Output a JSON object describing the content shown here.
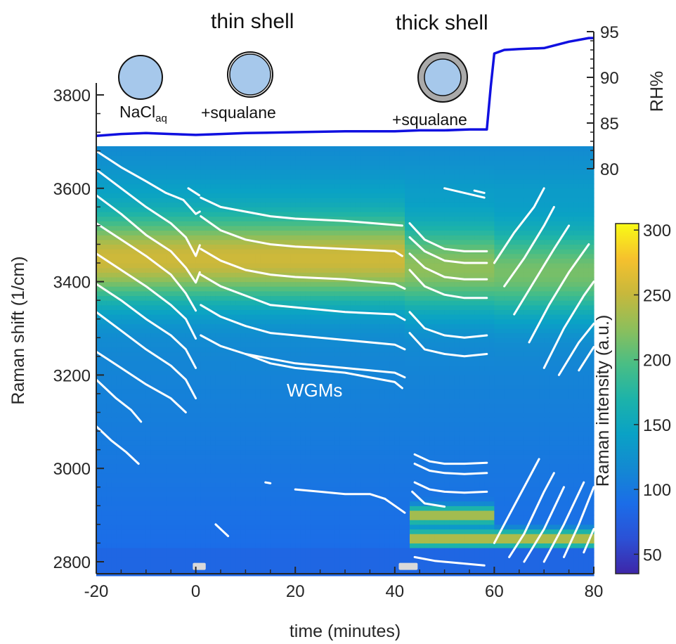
{
  "chart_data": [
    {
      "type": "heatmap",
      "xlabel": "time (minutes)",
      "ylabel": "Raman shift (1/cm)",
      "xlim": [
        -20,
        80
      ],
      "ylim": [
        2770,
        3690
      ],
      "x_ticks": [
        "-20",
        "0",
        "20",
        "40",
        "60",
        "80"
      ],
      "y_ticks": [
        "2800",
        "3000",
        "3200",
        "3400",
        "3600",
        "3800"
      ],
      "colorbar": {
        "label": "Raman intensity (a.u.)",
        "range": [
          35,
          305
        ],
        "ticks": [
          "50",
          "100",
          "150",
          "200",
          "250",
          "300"
        ],
        "colormap": "parula"
      },
      "annotations": {
        "wgm": "WGMs"
      },
      "intensity_bands": [
        {
          "t_start": -20,
          "t_end": 42,
          "shift": 3450,
          "peak": 255
        },
        {
          "t_start": 42,
          "t_end": 60,
          "shift": 3430,
          "peak": 225
        },
        {
          "t_start": 60,
          "t_end": 80,
          "shift": 3420,
          "peak": 215
        },
        {
          "t_start": 43,
          "t_end": 60,
          "shift": 2900,
          "peak": 245
        },
        {
          "t_start": 43,
          "t_end": 80,
          "shift": 2850,
          "peak": 250
        }
      ],
      "background_intensity": {
        "high_shift": 140,
        "low_shift": 85
      },
      "sample_marks": [
        {
          "t_start": -0.6,
          "t_end": 2.0,
          "shift": 2790
        },
        {
          "t_start": 40.8,
          "t_end": 44.6,
          "shift": 2790
        }
      ],
      "wgm_series": [
        {
          "x": [
            -20,
            -15,
            -10,
            -6,
            -2.5,
            0,
            0.8
          ],
          "y": [
            3680,
            3645,
            3615,
            3590,
            3575,
            3545,
            3550
          ]
        },
        {
          "x": [
            -20,
            -15,
            -10,
            -5,
            -2,
            0,
            0.8
          ],
          "y": [
            3640,
            3600,
            3560,
            3525,
            3495,
            3455,
            3478
          ]
        },
        {
          "x": [
            -20,
            -15,
            -10,
            -5,
            -2,
            0,
            0.8
          ],
          "y": [
            3585,
            3545,
            3500,
            3465,
            3430,
            3398,
            3420
          ]
        },
        {
          "x": [
            -20,
            -15,
            -10,
            -5,
            -2,
            0
          ],
          "y": [
            3525,
            3490,
            3455,
            3415,
            3375,
            3338
          ]
        },
        {
          "x": [
            -20,
            -15,
            -10,
            -5,
            -2,
            0
          ],
          "y": [
            3460,
            3425,
            3390,
            3350,
            3320,
            3278
          ]
        },
        {
          "x": [
            -20,
            -15,
            -10,
            -5,
            -2,
            0
          ],
          "y": [
            3395,
            3360,
            3320,
            3285,
            3255,
            3215
          ]
        },
        {
          "x": [
            -20,
            -15,
            -10,
            -5,
            -2,
            0
          ],
          "y": [
            3335,
            3295,
            3255,
            3220,
            3190,
            3150
          ]
        },
        {
          "x": [
            -20,
            -15,
            -10,
            -5,
            -2
          ],
          "y": [
            3250,
            3215,
            3180,
            3150,
            3120
          ]
        },
        {
          "x": [
            -20,
            -16,
            -13,
            -11
          ],
          "y": [
            3190,
            3150,
            3125,
            3100
          ]
        },
        {
          "x": [
            -20,
            -17,
            -14,
            -11.5
          ],
          "y": [
            3090,
            3060,
            3035,
            3010
          ]
        },
        {
          "x": [
            -1.5,
            0.7
          ],
          "y": [
            3600,
            3585
          ]
        },
        {
          "x": [
            1,
            5,
            10,
            15,
            20,
            30,
            41.5
          ],
          "y": [
            3580,
            3560,
            3550,
            3540,
            3535,
            3530,
            3520
          ]
        },
        {
          "x": [
            1,
            5,
            10,
            15,
            20,
            30,
            40,
            41.5
          ],
          "y": [
            3540,
            3510,
            3490,
            3480,
            3475,
            3470,
            3465,
            3455
          ]
        },
        {
          "x": [
            1,
            5,
            10,
            15,
            20,
            30,
            40,
            42
          ],
          "y": [
            3470,
            3445,
            3425,
            3415,
            3410,
            3405,
            3395,
            3385
          ]
        },
        {
          "x": [
            1,
            5,
            10,
            15,
            20,
            30,
            40,
            42
          ],
          "y": [
            3415,
            3390,
            3370,
            3350,
            3345,
            3335,
            3330,
            3318
          ]
        },
        {
          "x": [
            1,
            5,
            10,
            15,
            20,
            30,
            40,
            42
          ],
          "y": [
            3350,
            3325,
            3305,
            3290,
            3285,
            3275,
            3265,
            3255
          ]
        },
        {
          "x": [
            1,
            5,
            10,
            15,
            20,
            30,
            40,
            42
          ],
          "y": [
            3285,
            3262,
            3245,
            3235,
            3225,
            3215,
            3205,
            3195
          ]
        },
        {
          "x": [
            10,
            15,
            20,
            30,
            40,
            41.5
          ],
          "y": [
            3245,
            3225,
            3215,
            3205,
            3185,
            3172
          ]
        },
        {
          "x": [
            20,
            25,
            30,
            35,
            38
          ],
          "y": [
            2955,
            2950,
            2945,
            2945,
            2935
          ]
        },
        {
          "x": [
            38,
            40,
            42
          ],
          "y": [
            2935,
            2920,
            2905
          ]
        },
        {
          "x": [
            4,
            5.5,
            6.5
          ],
          "y": [
            2880,
            2865,
            2855
          ]
        },
        {
          "x": [
            14,
            15
          ],
          "y": [
            2970,
            2968
          ]
        },
        {
          "x": [
            43,
            46,
            50,
            54,
            58.5
          ],
          "y": [
            3525,
            3490,
            3470,
            3465,
            3465
          ]
        },
        {
          "x": [
            43,
            46,
            50,
            54,
            58.5
          ],
          "y": [
            3495,
            3465,
            3445,
            3440,
            3440
          ]
        },
        {
          "x": [
            43,
            46,
            50,
            54,
            58.5
          ],
          "y": [
            3460,
            3430,
            3410,
            3405,
            3405
          ]
        },
        {
          "x": [
            43,
            46,
            50,
            54,
            58.5
          ],
          "y": [
            3425,
            3390,
            3372,
            3365,
            3365
          ]
        },
        {
          "x": [
            43,
            46,
            50,
            54,
            58.5
          ],
          "y": [
            3335,
            3300,
            3285,
            3280,
            3285
          ]
        },
        {
          "x": [
            43,
            46,
            50,
            54,
            58.5
          ],
          "y": [
            3290,
            3255,
            3245,
            3240,
            3245
          ]
        },
        {
          "x": [
            44,
            47,
            50,
            54,
            58.5
          ],
          "y": [
            3030,
            3015,
            3010,
            3010,
            3012
          ]
        },
        {
          "x": [
            44,
            47,
            50,
            54,
            58.5
          ],
          "y": [
            3010,
            2995,
            2990,
            2988,
            2990
          ]
        },
        {
          "x": [
            44,
            47,
            50,
            54,
            58.5
          ],
          "y": [
            2970,
            2955,
            2950,
            2948,
            2950
          ]
        },
        {
          "x": [
            43.5,
            46,
            50
          ],
          "y": [
            2950,
            2925,
            2918
          ]
        },
        {
          "x": [
            44,
            48,
            53,
            58
          ],
          "y": [
            2810,
            2802,
            2797,
            2792
          ]
        },
        {
          "x": [
            50,
            54,
            58
          ],
          "y": [
            3600,
            3590,
            3580
          ]
        },
        {
          "x": [
            56,
            58
          ],
          "y": [
            3595,
            3590
          ]
        },
        {
          "x": [
            60,
            64,
            68,
            70
          ],
          "y": [
            3440,
            3505,
            3560,
            3600
          ]
        },
        {
          "x": [
            62,
            66,
            70,
            72
          ],
          "y": [
            3390,
            3450,
            3520,
            3560
          ]
        },
        {
          "x": [
            64,
            68,
            72,
            75
          ],
          "y": [
            3330,
            3400,
            3470,
            3520
          ]
        },
        {
          "x": [
            67,
            71,
            75,
            79
          ],
          "y": [
            3270,
            3350,
            3420,
            3480
          ]
        },
        {
          "x": [
            70,
            74,
            78,
            80
          ],
          "y": [
            3215,
            3300,
            3370,
            3400
          ]
        },
        {
          "x": [
            73,
            77,
            80
          ],
          "y": [
            3200,
            3270,
            3310
          ]
        },
        {
          "x": [
            77,
            80
          ],
          "y": [
            3210,
            3260
          ]
        },
        {
          "x": [
            60,
            63,
            67,
            69
          ],
          "y": [
            2840,
            2900,
            2980,
            3020
          ]
        },
        {
          "x": [
            63,
            66,
            70,
            72
          ],
          "y": [
            2810,
            2860,
            2950,
            2990
          ]
        },
        {
          "x": [
            66,
            70,
            74
          ],
          "y": [
            2800,
            2870,
            2960
          ]
        },
        {
          "x": [
            70,
            74,
            78
          ],
          "y": [
            2800,
            2880,
            2970
          ]
        },
        {
          "x": [
            74,
            77,
            80
          ],
          "y": [
            2810,
            2880,
            2960
          ]
        },
        {
          "x": [
            78,
            80
          ],
          "y": [
            2820,
            2870
          ]
        }
      ]
    },
    {
      "type": "line",
      "ylabel": "RH%",
      "xlim": [
        -20,
        80
      ],
      "ylim": [
        80,
        95
      ],
      "y_ticks": [
        "80",
        "85",
        "90",
        "95"
      ],
      "color": "#1010e0",
      "x": [
        -20,
        -15,
        -10,
        -5,
        0,
        5,
        10,
        20,
        30,
        40,
        45,
        50,
        55,
        58.5,
        59.3,
        60,
        62,
        65,
        70,
        75,
        79,
        80
      ],
      "y": [
        83.6,
        83.8,
        83.9,
        83.8,
        83.7,
        83.8,
        83.9,
        84.0,
        84.1,
        84.1,
        84.2,
        84.2,
        84.3,
        84.3,
        89.0,
        92.6,
        93.0,
        93.1,
        93.2,
        93.9,
        94.3,
        94.3
      ]
    }
  ],
  "illustrations": {
    "droplet_color": "#a6c8eb",
    "shell_color": "#aaaaaa",
    "labels": {
      "bare": "NaCl",
      "bare_subscript": "aq",
      "thin": "thin shell",
      "thin_sub": "+squalane",
      "thick": "thick shell",
      "thick_sub": "+squalane"
    }
  }
}
